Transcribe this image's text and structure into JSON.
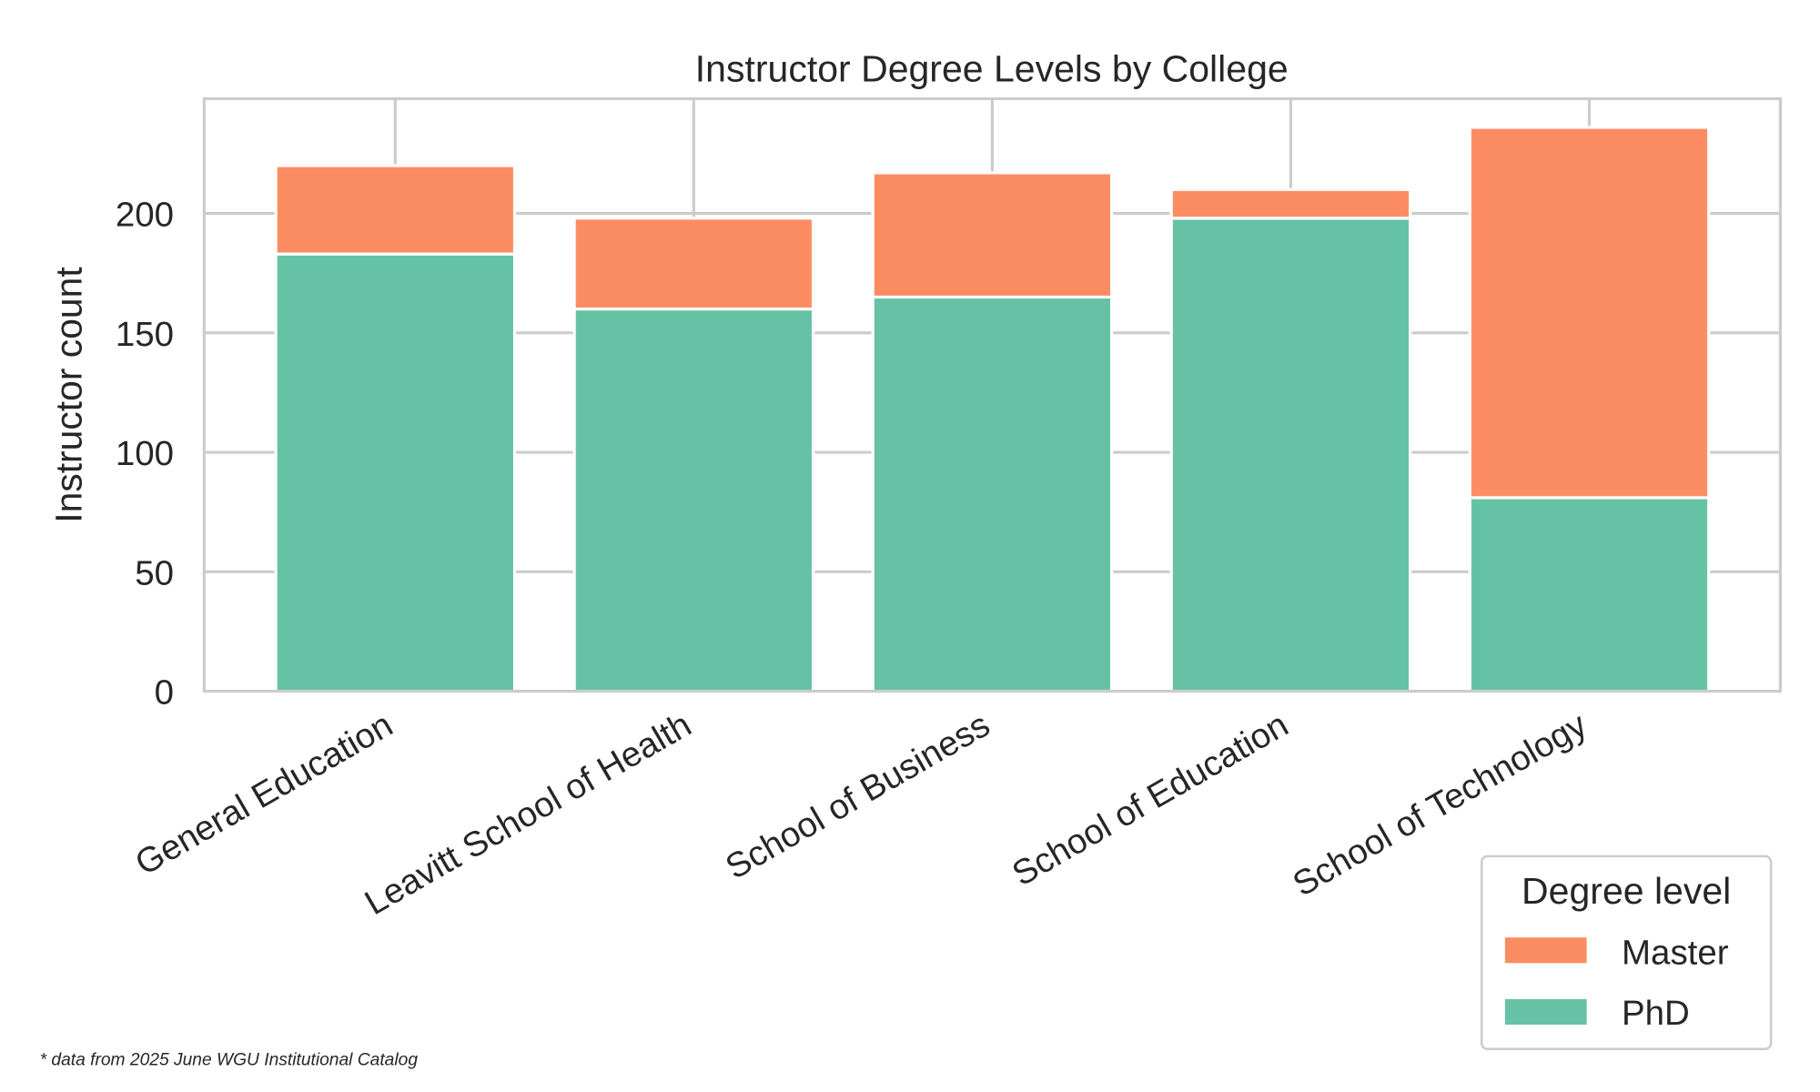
{
  "chart_data": {
    "type": "bar",
    "stacked": true,
    "title": "Instructor Degree Levels by College",
    "xlabel": "",
    "ylabel": "Instructor count",
    "categories": [
      "General Education",
      "Leavitt School of Health",
      "School of Business",
      "School of Education",
      "School of Technology"
    ],
    "series": [
      {
        "name": "PhD",
        "color": "#66c2a5",
        "values": [
          183,
          160,
          165,
          198,
          81
        ]
      },
      {
        "name": "Master",
        "color": "#fc8d62",
        "values": [
          37,
          38,
          52,
          12,
          155
        ]
      }
    ],
    "ylim": [
      0,
      248
    ],
    "yticks": [
      0,
      50,
      100,
      150,
      200
    ],
    "grid": true,
    "legend": {
      "title": "Degree level",
      "entries": [
        "Master",
        "PhD"
      ],
      "placement": "bottom-right outside"
    },
    "footnote": "* data from 2025 June WGU Institutional Catalog"
  }
}
